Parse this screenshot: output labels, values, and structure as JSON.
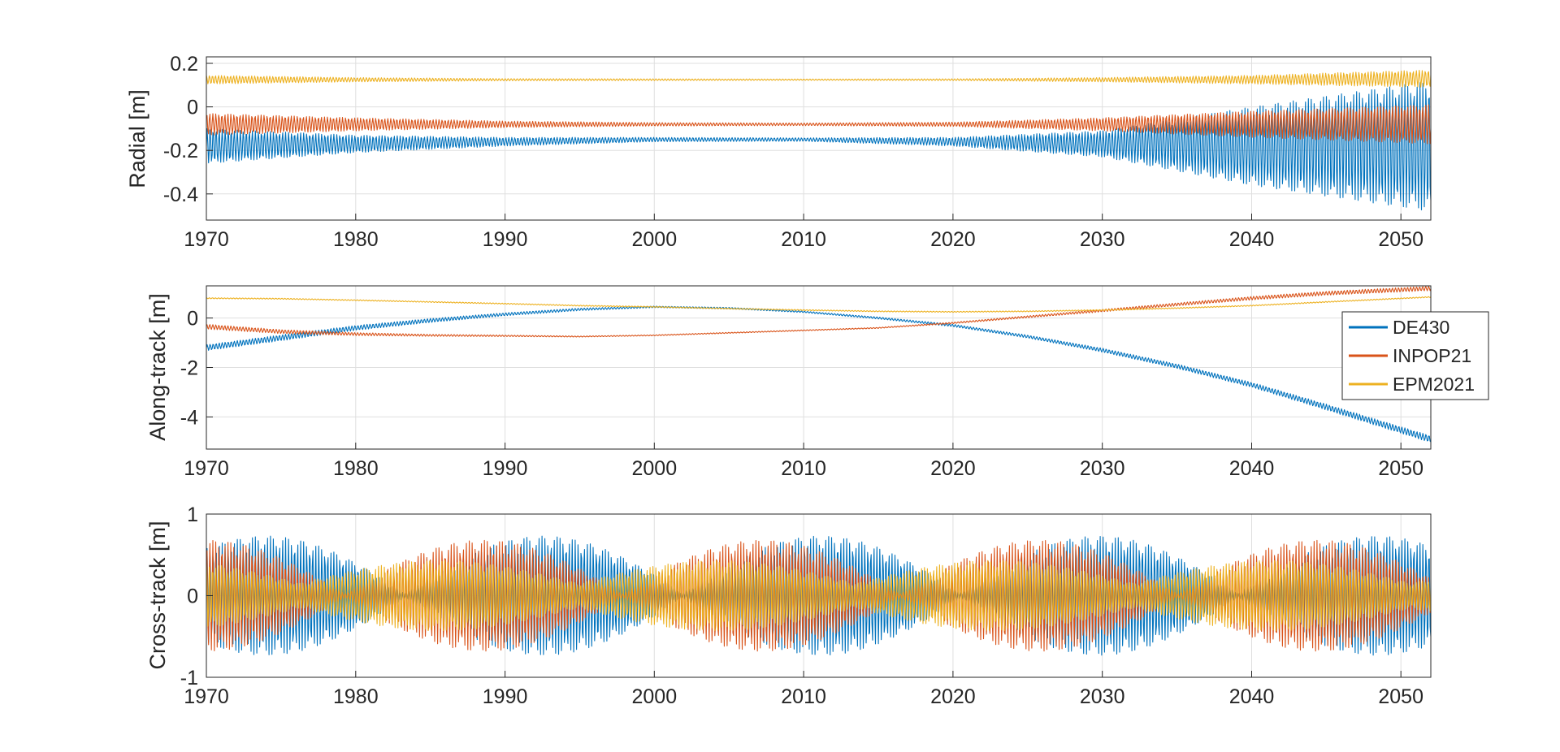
{
  "chart_data": [
    {
      "type": "line",
      "ylabel": "Radial [m]",
      "xlim": [
        1970,
        2052
      ],
      "ylim": [
        -0.52,
        0.23
      ],
      "xticks": [
        1970,
        1980,
        1990,
        2000,
        2010,
        2020,
        2030,
        2040,
        2050
      ],
      "yticks": [
        0.2,
        0,
        -0.2,
        -0.4
      ],
      "ytick_labels": [
        "0.2",
        "0",
        "-0.2",
        "-0.4"
      ],
      "grid": true,
      "series": [
        {
          "name": "DE430",
          "color": "#0072BD",
          "x": [
            1970,
            1980,
            1990,
            2000,
            2010,
            2020,
            2030,
            2040,
            2052
          ],
          "center": [
            -0.18,
            -0.17,
            -0.16,
            -0.15,
            -0.15,
            -0.16,
            -0.17,
            -0.18,
            -0.18
          ],
          "amplitude": [
            0.08,
            0.04,
            0.02,
            0.01,
            0.008,
            0.02,
            0.06,
            0.18,
            0.3
          ]
        },
        {
          "name": "INPOP21",
          "color": "#D95319",
          "x": [
            1970,
            1980,
            1990,
            2000,
            2010,
            2020,
            2030,
            2040,
            2052
          ],
          "center": [
            -0.08,
            -0.08,
            -0.08,
            -0.08,
            -0.08,
            -0.08,
            -0.08,
            -0.08,
            -0.08
          ],
          "amplitude": [
            0.05,
            0.03,
            0.015,
            0.008,
            0.006,
            0.01,
            0.03,
            0.06,
            0.09
          ]
        },
        {
          "name": "EPM2021",
          "color": "#EDB120",
          "x": [
            1970,
            1980,
            1990,
            2000,
            2010,
            2020,
            2030,
            2040,
            2052
          ],
          "center": [
            0.125,
            0.125,
            0.125,
            0.125,
            0.125,
            0.125,
            0.125,
            0.125,
            0.13
          ],
          "amplitude": [
            0.02,
            0.01,
            0.005,
            0.004,
            0.003,
            0.004,
            0.01,
            0.02,
            0.04
          ]
        }
      ]
    },
    {
      "type": "line",
      "ylabel": "Along-track [m]",
      "xlim": [
        1970,
        2052
      ],
      "ylim": [
        -5.3,
        1.3
      ],
      "xticks": [
        1970,
        1980,
        1990,
        2000,
        2010,
        2020,
        2030,
        2040,
        2050
      ],
      "yticks": [
        0,
        -2,
        -4
      ],
      "ytick_labels": [
        "0",
        "-2",
        "-4"
      ],
      "grid": true,
      "legend": {
        "position": "right",
        "entries": [
          "DE430",
          "INPOP21",
          "EPM2021"
        ]
      },
      "series": [
        {
          "name": "DE430",
          "color": "#0072BD",
          "x": [
            1970,
            1975,
            1980,
            1985,
            1990,
            1995,
            2000,
            2005,
            2010,
            2015,
            2020,
            2025,
            2030,
            2035,
            2040,
            2045,
            2052
          ],
          "center": [
            -1.2,
            -0.8,
            -0.4,
            -0.1,
            0.15,
            0.35,
            0.45,
            0.4,
            0.25,
            0.0,
            -0.3,
            -0.75,
            -1.3,
            -1.95,
            -2.7,
            -3.6,
            -4.9
          ],
          "amplitude": [
            0.12,
            0.12,
            0.1,
            0.08,
            0.06,
            0.05,
            0.03,
            0.03,
            0.03,
            0.04,
            0.05,
            0.06,
            0.08,
            0.09,
            0.1,
            0.12,
            0.14
          ]
        },
        {
          "name": "INPOP21",
          "color": "#D95319",
          "x": [
            1970,
            1975,
            1980,
            1985,
            1990,
            1995,
            2000,
            2005,
            2010,
            2015,
            2020,
            2025,
            2030,
            2035,
            2040,
            2045,
            2052
          ],
          "center": [
            -0.35,
            -0.55,
            -0.65,
            -0.7,
            -0.72,
            -0.75,
            -0.7,
            -0.6,
            -0.5,
            -0.4,
            -0.2,
            0.05,
            0.3,
            0.55,
            0.8,
            1.0,
            1.2
          ],
          "amplitude": [
            0.1,
            0.08,
            0.06,
            0.04,
            0.03,
            0.02,
            0.02,
            0.02,
            0.02,
            0.02,
            0.03,
            0.04,
            0.05,
            0.06,
            0.07,
            0.08,
            0.09
          ]
        },
        {
          "name": "EPM2021",
          "color": "#EDB120",
          "x": [
            1970,
            1975,
            1980,
            1985,
            1990,
            1995,
            2000,
            2005,
            2010,
            2015,
            2020,
            2025,
            2030,
            2035,
            2040,
            2045,
            2052
          ],
          "center": [
            0.8,
            0.78,
            0.72,
            0.65,
            0.58,
            0.5,
            0.45,
            0.38,
            0.32,
            0.27,
            0.25,
            0.27,
            0.32,
            0.4,
            0.5,
            0.65,
            0.85
          ],
          "amplitude": [
            0.02,
            0.02,
            0.02,
            0.02,
            0.02,
            0.02,
            0.02,
            0.02,
            0.02,
            0.02,
            0.02,
            0.02,
            0.02,
            0.02,
            0.02,
            0.02,
            0.02
          ]
        }
      ]
    },
    {
      "type": "line",
      "ylabel": "Cross-track [m]",
      "xlim": [
        1970,
        2052
      ],
      "ylim": [
        -1,
        1
      ],
      "xticks": [
        1970,
        1980,
        1990,
        2000,
        2010,
        2020,
        2030,
        2040,
        2050
      ],
      "yticks": [
        1,
        0,
        -1
      ],
      "ytick_labels": [
        "1",
        "0",
        "-1"
      ],
      "grid": true,
      "series": [
        {
          "name": "DE430",
          "color": "#0072BD",
          "envelope_min": 0.03,
          "envelope_max": 0.73,
          "envelope_period": 18.6,
          "envelope_phase": 1974
        },
        {
          "name": "INPOP21",
          "color": "#D95319",
          "envelope_min": 0.02,
          "envelope_max": 0.68,
          "envelope_period": 18.6,
          "envelope_phase": 1970
        },
        {
          "name": "EPM2021",
          "color": "#EDB120",
          "envelope_min": 0.15,
          "envelope_max": 0.43,
          "envelope_period": 18.6,
          "envelope_phase": 1967
        }
      ]
    }
  ]
}
